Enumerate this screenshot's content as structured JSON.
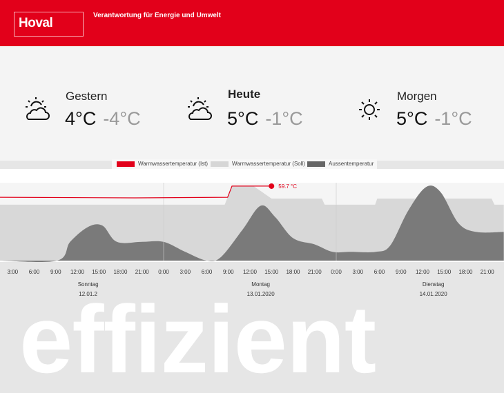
{
  "header": {
    "logo": "Hoval",
    "tagline": "Verantwortung für Energie und Umwelt",
    "brand_color": "#e2001a"
  },
  "weather": [
    {
      "name": "Gestern",
      "high": "4°C",
      "low": "-4°C",
      "icon": "sun-behind-cloud-icon",
      "bold": false
    },
    {
      "name": "Heute",
      "high": "5°C",
      "low": "-1°C",
      "icon": "sun-behind-cloud-icon",
      "bold": true
    },
    {
      "name": "Morgen",
      "high": "5°C",
      "low": "-1°C",
      "icon": "sun-icon",
      "bold": false
    }
  ],
  "chart_data": {
    "type": "area",
    "legend": [
      {
        "name": "Warmwassertemperatur (Ist)",
        "color": "#e2001a"
      },
      {
        "name": "Warmwassertemperatur (Soll)",
        "color": "#d6d6d6"
      },
      {
        "name": "Aussentemperatur",
        "color": "#666666"
      }
    ],
    "x_unit": "hours since Sonntag 0:00",
    "x_ticks": [
      "3:00",
      "6:00",
      "9:00",
      "12:00",
      "15:00",
      "18:00",
      "21:00",
      "0:00",
      "3:00",
      "6:00",
      "9:00",
      "12:00",
      "15:00",
      "18:00",
      "21:00",
      "0:00",
      "3:00",
      "6:00",
      "9:00",
      "12:00",
      "15:00",
      "18:00",
      "21:00"
    ],
    "days": [
      {
        "name": "Sonntag",
        "date": "12.01.2"
      },
      {
        "name": "Montag",
        "date": "13.01.2020"
      },
      {
        "name": "Dienstag",
        "date": "14.01.2020"
      }
    ],
    "last_value_label": "59.7 °C",
    "ist": [
      [
        1.2,
        50.8
      ],
      [
        20,
        50.3
      ],
      [
        32.9,
        50.8
      ],
      [
        33.5,
        59.7
      ],
      [
        39,
        59.7
      ]
    ],
    "soll": [
      [
        1.2,
        44.8
      ],
      [
        32.5,
        44.8
      ],
      [
        33.5,
        59.7
      ],
      [
        36.5,
        59.7
      ],
      [
        39,
        49.7
      ],
      [
        46,
        49.7
      ],
      [
        46.4,
        44.8
      ],
      [
        53.4,
        44.8
      ],
      [
        53.7,
        49.7
      ],
      [
        69.6,
        49.7
      ],
      [
        70,
        44.8
      ],
      [
        71.3,
        44.8
      ]
    ],
    "aussen": [
      [
        1.2,
        0
      ],
      [
        9.2,
        0
      ],
      [
        11,
        15
      ],
      [
        13.5,
        27
      ],
      [
        15.5,
        28
      ],
      [
        17.5,
        15
      ],
      [
        21,
        15
      ],
      [
        24,
        15
      ],
      [
        27,
        7
      ],
      [
        30,
        0
      ],
      [
        32,
        3
      ],
      [
        35,
        25
      ],
      [
        37.5,
        44
      ],
      [
        39.5,
        35
      ],
      [
        42,
        18
      ],
      [
        45,
        13
      ],
      [
        47.5,
        7
      ],
      [
        50,
        7
      ],
      [
        53.5,
        7
      ],
      [
        55.5,
        12
      ],
      [
        58,
        40
      ],
      [
        60.5,
        59
      ],
      [
        62.5,
        55
      ],
      [
        65,
        30
      ],
      [
        67.5,
        23
      ],
      [
        71.3,
        23
      ]
    ]
  },
  "watermark": "effizient"
}
